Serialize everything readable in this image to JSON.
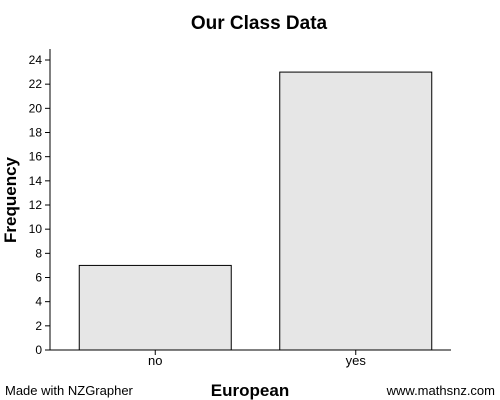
{
  "chart_data": {
    "type": "bar",
    "title": "Our Class Data",
    "xlabel": "European",
    "ylabel": "Frequency",
    "categories": [
      "no",
      "yes"
    ],
    "values": [
      7,
      23
    ],
    "ylim": [
      0,
      24
    ],
    "yticks": [
      0,
      2,
      4,
      6,
      8,
      10,
      12,
      14,
      16,
      18,
      20,
      22,
      24
    ],
    "bar_color": "#e6e6e6",
    "bar_stroke": "#000000",
    "grid": false,
    "legend": "none"
  },
  "footer": {
    "left": "Made with NZGrapher",
    "right": "www.mathsnz.com"
  }
}
